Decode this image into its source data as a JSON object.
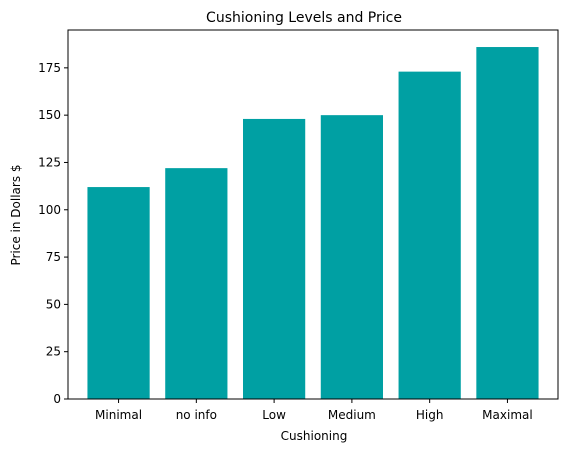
{
  "chart_data": {
    "type": "bar",
    "title": "Cushioning Levels and Price",
    "xlabel": "Cushioning",
    "ylabel": "Price in Dollars $",
    "categories": [
      "Minimal",
      "no info",
      "Low",
      "Medium",
      "High",
      "Maximal"
    ],
    "values": [
      112,
      122,
      148,
      150,
      173,
      186
    ],
    "ylim": [
      0,
      195
    ],
    "yticks": [
      0,
      25,
      50,
      75,
      100,
      125,
      150,
      175
    ],
    "bar_color": "#00A0A3",
    "grid": false,
    "legend": false
  }
}
